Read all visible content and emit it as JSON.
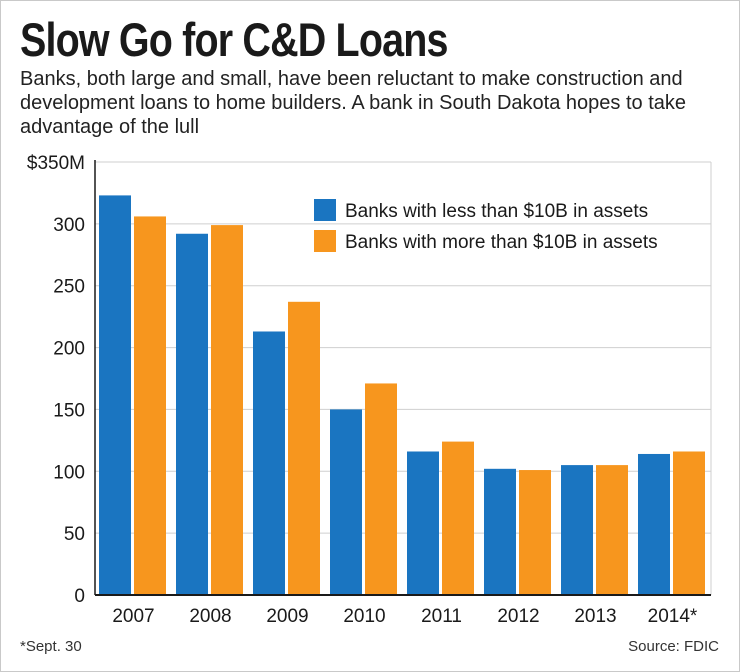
{
  "title": "Slow Go for C&D Loans",
  "subtitle": "Banks, both large and small, have been reluctant to make construction and development loans to home builders. A bank in South Dakota hopes to take advantage of the lull",
  "footnote": "*Sept. 30",
  "source": "Source: FDIC",
  "colors": {
    "series_small": "#1a75c1",
    "series_large": "#f7961e",
    "grid": "#cfcfcf",
    "axis": "#1a1a1a"
  },
  "chart_data": {
    "type": "bar",
    "categories": [
      "2007",
      "2008",
      "2009",
      "2010",
      "2011",
      "2012",
      "2013",
      "2014*"
    ],
    "series": [
      {
        "name": "Banks with less than $10B in assets",
        "values": [
          323,
          292,
          213,
          150,
          116,
          102,
          105,
          114
        ]
      },
      {
        "name": "Banks with more than $10B in assets",
        "values": [
          306,
          299,
          237,
          171,
          124,
          101,
          105,
          116
        ]
      }
    ],
    "ylim": [
      0,
      350
    ],
    "yticks": [
      0,
      50,
      100,
      150,
      200,
      250,
      300,
      350
    ],
    "ytick_labels": [
      "0",
      "50",
      "100",
      "150",
      "200",
      "250",
      "300",
      "$350M"
    ],
    "grid": true,
    "legend_position": "top-right",
    "xlabel": "",
    "ylabel": ""
  }
}
